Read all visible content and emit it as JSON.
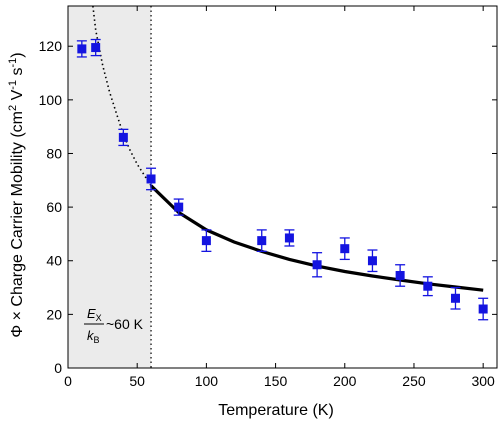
{
  "chart_data": {
    "type": "scatter",
    "xlabel": "Temperature (K)",
    "ylabel_parts": {
      "prefix": "Φ × Charge Carrier Mobility (cm",
      "sup1": "2",
      "mid": " V",
      "sup2": "-1",
      "mid2": " s",
      "sup3": "-1",
      "suffix": ")"
    },
    "xlim": [
      0,
      310
    ],
    "ylim": [
      0,
      135
    ],
    "x_ticks": [
      0,
      50,
      100,
      150,
      200,
      250,
      300
    ],
    "y_ticks": [
      0,
      20,
      40,
      60,
      80,
      100,
      120
    ],
    "grid": false,
    "shaded_region": {
      "x_start": 0,
      "x_end": 60,
      "color": "#ebebeb"
    },
    "vertical_line_x": 60,
    "annotation": {
      "numerator": "E",
      "numerator_sub": "X",
      "denominator": "k",
      "denominator_sub": "B",
      "text": "~60 K"
    },
    "series": [
      {
        "color": "#1414e0",
        "points": [
          {
            "x": 10,
            "y": 119,
            "err": 3
          },
          {
            "x": 20,
            "y": 119.5,
            "err": 3
          },
          {
            "x": 40,
            "y": 86,
            "err": 3
          },
          {
            "x": 60,
            "y": 70.5,
            "err": 4
          },
          {
            "x": 80,
            "y": 60,
            "err": 3
          },
          {
            "x": 100,
            "y": 47.5,
            "err": 4
          },
          {
            "x": 140,
            "y": 47.5,
            "err": 4
          },
          {
            "x": 160,
            "y": 48.5,
            "err": 3
          },
          {
            "x": 180,
            "y": 38.5,
            "err": 4.5
          },
          {
            "x": 200,
            "y": 44.5,
            "err": 4
          },
          {
            "x": 220,
            "y": 40,
            "err": 4
          },
          {
            "x": 240,
            "y": 34.5,
            "err": 4
          },
          {
            "x": 260,
            "y": 30.5,
            "err": 3.5
          },
          {
            "x": 280,
            "y": 26,
            "err": 4
          },
          {
            "x": 300,
            "y": 22,
            "err": 4
          }
        ]
      }
    ],
    "fit_curve": {
      "solid_range": [
        60,
        300
      ],
      "dotted_range": [
        18,
        60
      ],
      "points": [
        {
          "x": 18,
          "y": 135
        },
        {
          "x": 20,
          "y": 126
        },
        {
          "x": 25,
          "y": 113
        },
        {
          "x": 30,
          "y": 103
        },
        {
          "x": 35,
          "y": 95
        },
        {
          "x": 40,
          "y": 87
        },
        {
          "x": 45,
          "y": 81
        },
        {
          "x": 50,
          "y": 76
        },
        {
          "x": 55,
          "y": 72
        },
        {
          "x": 60,
          "y": 68
        },
        {
          "x": 80,
          "y": 58
        },
        {
          "x": 100,
          "y": 51.5
        },
        {
          "x": 120,
          "y": 47
        },
        {
          "x": 140,
          "y": 43.5
        },
        {
          "x": 160,
          "y": 40.5
        },
        {
          "x": 180,
          "y": 38
        },
        {
          "x": 200,
          "y": 36
        },
        {
          "x": 220,
          "y": 34.3
        },
        {
          "x": 240,
          "y": 32.8
        },
        {
          "x": 260,
          "y": 31.4
        },
        {
          "x": 280,
          "y": 30.2
        },
        {
          "x": 300,
          "y": 29
        }
      ]
    }
  }
}
